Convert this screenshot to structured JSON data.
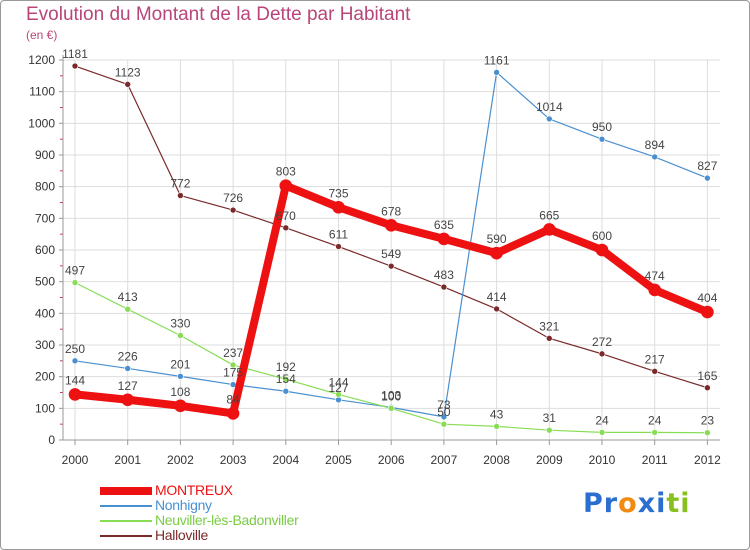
{
  "chart_data": {
    "type": "line",
    "title": "Evolution du Montant de la Dette par Habitant",
    "unit_label": "(en €)",
    "x": [
      "2000",
      "2001",
      "2002",
      "2003",
      "2004",
      "2005",
      "2006",
      "2007",
      "2008",
      "2009",
      "2010",
      "2011",
      "2012"
    ],
    "ylim": [
      0,
      1200
    ],
    "yticks": [
      "0",
      "100",
      "200",
      "300",
      "400",
      "500",
      "600",
      "700",
      "800",
      "900",
      "1000",
      "1100",
      "1200"
    ],
    "grid": true,
    "legend_position": "bottom-left",
    "series": [
      {
        "name": "Halloville",
        "color": "#7a2a2a",
        "values": [
          1181,
          1123,
          772,
          726,
          670,
          611,
          549,
          483,
          414,
          321,
          272,
          217,
          165
        ]
      },
      {
        "name": "Nonhigny",
        "color": "#4a90d0",
        "values": [
          250,
          226,
          201,
          175,
          154,
          127,
          103,
          73,
          1161,
          1014,
          950,
          894,
          827
        ]
      },
      {
        "name": "Neuviller-lès-Badonviller",
        "color": "#88dd55",
        "values": [
          497,
          413,
          330,
          237,
          192,
          144,
          100,
          50,
          43,
          31,
          24,
          24,
          23
        ]
      },
      {
        "name": "MONTREUX",
        "color": "#ee1111",
        "values": [
          144,
          127,
          108,
          84,
          803,
          735,
          678,
          635,
          590,
          665,
          600,
          474,
          404
        ]
      }
    ],
    "data_labels": {
      "Halloville": [
        "1181",
        "1123",
        "772",
        "726",
        "670",
        "611",
        "549",
        "483",
        "414",
        "321",
        "272",
        "217",
        "165"
      ],
      "Nonhigny": [
        "250",
        "226",
        "201",
        "175",
        "154",
        "127",
        "103",
        "73",
        "1161",
        "1014",
        "950",
        "894",
        "827"
      ],
      "Neuviller-lès-Badonviller": [
        "497",
        "413",
        "330",
        "237",
        "192",
        "144",
        "100",
        "50",
        "43",
        "31",
        "24",
        "24",
        "23"
      ],
      "MONTREUX": [
        "144",
        "127",
        "108",
        "84",
        "803",
        "735",
        "678",
        "635",
        "590",
        "665",
        "600",
        "474",
        "404"
      ]
    }
  },
  "legend": {
    "items": [
      {
        "label": "MONTREUX",
        "color": "#ee1111"
      },
      {
        "label": "Nonhigny",
        "color": "#4a90d0"
      },
      {
        "label": "Neuviller-lès-Badonviller",
        "color": "#88dd55"
      },
      {
        "label": "Halloville",
        "color": "#7a2a2a"
      }
    ]
  },
  "logo": {
    "text": "Proxiti",
    "letters": [
      "P",
      "r",
      "o",
      "x",
      "i",
      "t",
      "i"
    ],
    "colors": [
      "#2a6fd0",
      "#2a6fd0",
      "#f08a10",
      "#2a6fd0",
      "#2a6fd0",
      "#88c020",
      "#88c020"
    ]
  }
}
